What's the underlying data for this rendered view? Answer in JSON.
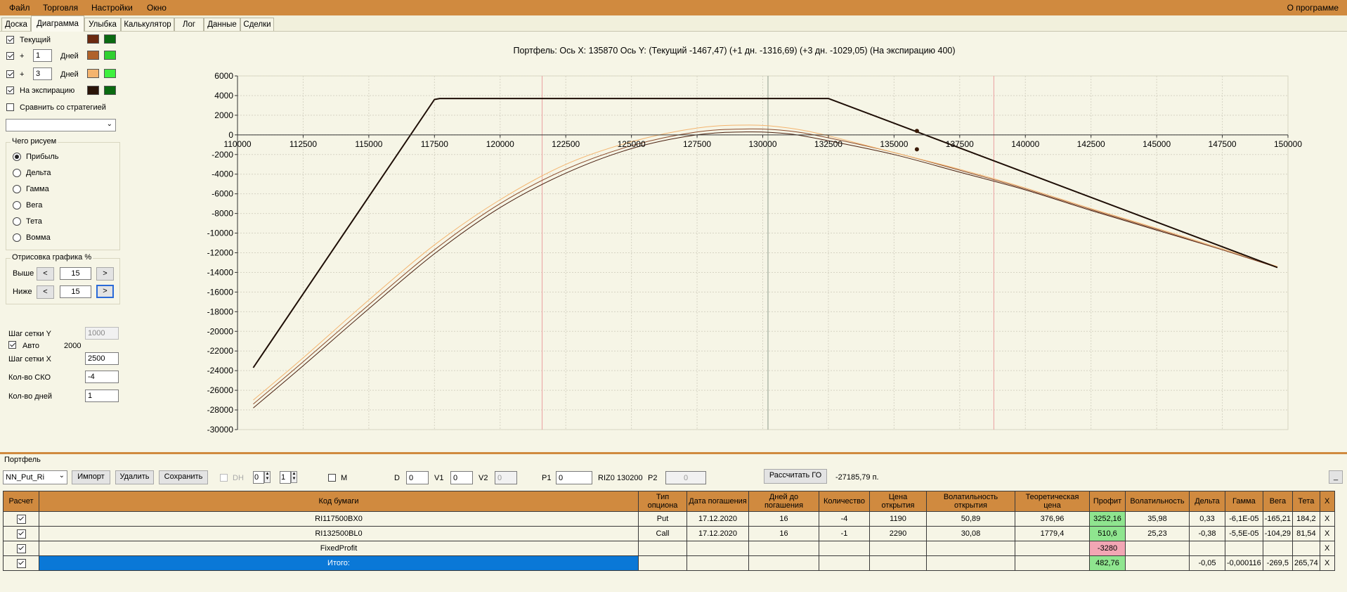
{
  "menu": {
    "items": [
      "Файл",
      "Торговля",
      "Настройки",
      "Окно"
    ],
    "about": "О программе"
  },
  "tabs": [
    "Доска",
    "Диаграмма",
    "Улыбка",
    "Калькулятор",
    "Лог",
    "Данные",
    "Сделки"
  ],
  "active_tab": "Диаграмма",
  "left": {
    "series": [
      {
        "checked": true,
        "prefix": "",
        "days": "",
        "label": "Текущий",
        "colors": [
          "#6b2a10",
          "#0a6a10"
        ]
      },
      {
        "checked": true,
        "prefix": "+",
        "days": "1",
        "label": "Дней",
        "colors": [
          "#b0622a",
          "#30d030"
        ]
      },
      {
        "checked": true,
        "prefix": "+",
        "days": "3",
        "label": "Дней",
        "colors": [
          "#f4b46e",
          "#3ef03e"
        ]
      },
      {
        "checked": true,
        "prefix": "",
        "days": "",
        "label": "На экспирацию",
        "colors": [
          "#2a1408",
          "#0a6a10"
        ]
      }
    ],
    "compare_label": "Сравнить со стратегией",
    "compare_checked": false,
    "draw_group_title": "Чего рисуем",
    "draw_options": [
      "Прибыль",
      "Дельта",
      "Гамма",
      "Вега",
      "Тета",
      "Вомма"
    ],
    "draw_selected": 0,
    "pct_group_title": "Отрисовка графика %",
    "above_label": "Выше",
    "above_value": "15",
    "below_label": "Ниже",
    "below_value": "15",
    "btn_less": "<",
    "btn_more": ">",
    "grid_y_label": "Шаг сетки Y",
    "grid_y_value": "1000",
    "auto_label": "Авто",
    "auto_checked": true,
    "auto_value": "2000",
    "grid_x_label": "Шаг сетки X",
    "grid_x_value": "2500",
    "sko_label": "Кол-во СКО",
    "sko_value": "-4",
    "days_label": "Кол-во дней",
    "days_value": "1"
  },
  "chart_data": {
    "type": "line",
    "title": "Портфель: Ось X: 135870 Ось Y:  (Текущий -1467,47)  (+1 дн. -1316,69)  (+3 дн. -1029,05)  (На экспирацию 400)",
    "xlim": [
      110000,
      150000
    ],
    "ylim": [
      -30000,
      6000
    ],
    "x_ticks": [
      110000,
      112500,
      115000,
      117500,
      120000,
      122500,
      125000,
      127500,
      130000,
      132500,
      135000,
      137500,
      140000,
      142500,
      145000,
      147500,
      150000
    ],
    "y_ticks": [
      6000,
      4000,
      2000,
      0,
      -2000,
      -4000,
      -6000,
      -8000,
      -10000,
      -12000,
      -14000,
      -16000,
      -18000,
      -20000,
      -22000,
      -24000,
      -26000,
      -28000,
      -30000
    ],
    "grid": true,
    "vertical_lines": [
      {
        "x": 121600,
        "color": "#eaa0a0"
      },
      {
        "x": 130200,
        "color": "#8c9a8c"
      },
      {
        "x": 138800,
        "color": "#eaa0a0"
      }
    ],
    "series": [
      {
        "name": "На экспирацию",
        "color": "#1e0e06",
        "width": 2,
        "x": [
          110600,
          117500,
          117700,
          132500,
          149600
        ],
        "y": [
          -23700,
          3600,
          3700,
          3700,
          -13500
        ]
      },
      {
        "name": "+3 дн.",
        "color": "#f4b46e",
        "width": 1,
        "x": [
          110600,
          112500,
          115000,
          117500,
          120000,
          122500,
          125000,
          127500,
          129500,
          131000,
          132500,
          135000,
          137500,
          140000,
          142500,
          145000,
          147500,
          149600
        ],
        "y": [
          -27000,
          -22700,
          -16800,
          -11200,
          -6600,
          -3000,
          -700,
          700,
          1000,
          700,
          -100,
          -1800,
          -3500,
          -5400,
          -7500,
          -9500,
          -11600,
          -13400
        ]
      },
      {
        "name": "+1 дн.",
        "color": "#8a4a2a",
        "width": 1,
        "x": [
          110600,
          112500,
          115000,
          117500,
          120000,
          122500,
          125000,
          127500,
          129500,
          131000,
          132500,
          135000,
          137500,
          140000,
          142500,
          145000,
          147500,
          149600
        ],
        "y": [
          -27400,
          -23100,
          -17300,
          -11700,
          -7000,
          -3500,
          -1100,
          300,
          600,
          400,
          -300,
          -1800,
          -3600,
          -5500,
          -7600,
          -9600,
          -11700,
          -13500
        ]
      },
      {
        "name": "Текущий",
        "color": "#4a2010",
        "width": 1,
        "x": [
          110600,
          112500,
          115000,
          117500,
          120000,
          122500,
          125000,
          127500,
          129500,
          131000,
          132500,
          135000,
          137500,
          140000,
          142500,
          145000,
          147500,
          149600
        ],
        "y": [
          -27800,
          -23500,
          -17700,
          -12100,
          -7400,
          -3900,
          -1400,
          0,
          300,
          100,
          -600,
          -2000,
          -3800,
          -5600,
          -7700,
          -9700,
          -11700,
          -13500
        ]
      }
    ],
    "markers": [
      {
        "x": 135870,
        "y": 400
      },
      {
        "x": 135870,
        "y": -1467
      }
    ]
  },
  "portfolio": {
    "title": "Портфель",
    "select_value": "NN_Put_Ri",
    "import_label": "Импорт",
    "delete_label": "Удалить",
    "save_label": "Сохранить",
    "dh_label": "DH",
    "spin1": "0",
    "spin2": "1",
    "m_label": "M",
    "d_label": "D",
    "d_value": "0",
    "v1_label": "V1",
    "v1_value": "0",
    "v2_label": "V2",
    "v2_value": "0",
    "p1_label": "P1",
    "p1_value": "0",
    "instrument": "RIZ0 130200",
    "p2_label": "P2",
    "p2_value": "0",
    "calc_go_label": "Рассчитать ГО",
    "go_value": "-27185,79 п.",
    "minimize_label": "_"
  },
  "table": {
    "headers": [
      "Расчет",
      "Код бумаги",
      "Тип опциона",
      "Дата погашения",
      "Дней до погашения",
      "Количество",
      "Цена открытия",
      "Волатильность открытия",
      "Теоретическая цена",
      "Профит",
      "Волатильность",
      "Дельта",
      "Гамма",
      "Вега",
      "Тета",
      "X"
    ],
    "rows": [
      {
        "checked": true,
        "cells": [
          "RI117500BX0",
          "Put",
          "17.12.2020",
          "16",
          "-4",
          "1190",
          "50,89",
          "376,96",
          "3252,16",
          "35,98",
          "0,33",
          "-6,1E-05",
          "-165,21",
          "184,2",
          "X"
        ],
        "profit_class": "green"
      },
      {
        "checked": true,
        "cells": [
          "RI132500BL0",
          "Call",
          "17.12.2020",
          "16",
          "-1",
          "2290",
          "30,08",
          "1779,4",
          "510,6",
          "25,23",
          "-0,38",
          "-5,5E-05",
          "-104,29",
          "81,54",
          "X"
        ],
        "profit_class": "green"
      },
      {
        "checked": true,
        "cells": [
          "FixedProfit",
          "",
          "",
          "",
          "",
          "",
          "",
          "",
          "-3280",
          "",
          "",
          "",
          "",
          "",
          "X"
        ],
        "profit_class": "pink"
      },
      {
        "checked": true,
        "cells": [
          "Итого:",
          "",
          "",
          "",
          "",
          "",
          "",
          "",
          "482,76",
          "",
          "-0,05",
          "-0,000116",
          "-269,5",
          "265,74",
          "X"
        ],
        "profit_class": "green"
      }
    ]
  }
}
